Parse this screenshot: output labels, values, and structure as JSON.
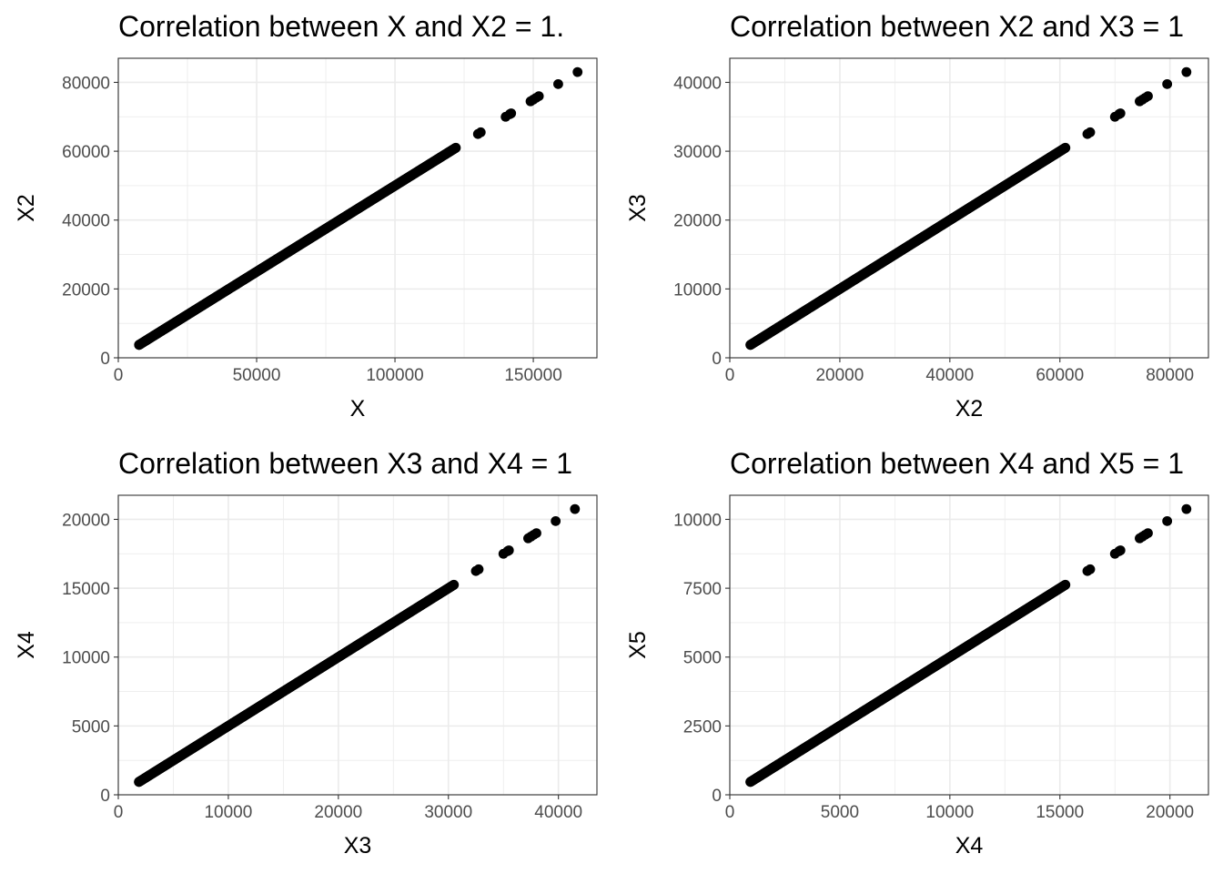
{
  "chart_data": [
    {
      "type": "scatter",
      "title": "Correlation between X and X2 = 1.",
      "xlabel": "X",
      "ylabel": "X2",
      "xlim": [
        0,
        173000
      ],
      "ylim": [
        0,
        87000
      ],
      "xticks": [
        0,
        50000,
        100000,
        150000
      ],
      "yticks": [
        0,
        20000,
        40000,
        60000,
        80000
      ],
      "xtick_labels": [
        "0",
        "50000",
        "100000",
        "150000"
      ],
      "ytick_labels": [
        "0",
        "20000",
        "40000",
        "60000",
        "80000"
      ],
      "grid": true,
      "x_dense_range": [
        7500,
        122000
      ],
      "slope": 0.5,
      "x_sparse": [
        7500,
        11000,
        13000,
        15500,
        16500,
        17500,
        18500,
        120000,
        121000,
        122000,
        130000,
        131000,
        140000,
        141500,
        142000,
        149000,
        150000,
        151000,
        152000,
        159000,
        166000
      ]
    },
    {
      "type": "scatter",
      "title": "Correlation between X2 and X3 = 1",
      "xlabel": "X2",
      "ylabel": "X3",
      "xlim": [
        0,
        87000
      ],
      "ylim": [
        0,
        43500
      ],
      "xticks": [
        0,
        20000,
        40000,
        60000,
        80000
      ],
      "yticks": [
        0,
        10000,
        20000,
        30000,
        40000
      ],
      "xtick_labels": [
        "0",
        "20000",
        "40000",
        "60000",
        "80000"
      ],
      "ytick_labels": [
        "0",
        "10000",
        "20000",
        "30000",
        "40000"
      ],
      "grid": true,
      "x_dense_range": [
        3750,
        61000
      ],
      "slope": 0.5,
      "x_sparse": [
        3750,
        5500,
        6500,
        7750,
        8250,
        8750,
        9250,
        60000,
        60500,
        61000,
        65000,
        65500,
        70000,
        70750,
        71000,
        74500,
        75000,
        75500,
        76000,
        79500,
        83000
      ]
    },
    {
      "type": "scatter",
      "title": "Correlation between X3 and X4 = 1",
      "xlabel": "X3",
      "ylabel": "X4",
      "xlim": [
        0,
        43500
      ],
      "ylim": [
        0,
        21750
      ],
      "xticks": [
        0,
        10000,
        20000,
        30000,
        40000
      ],
      "yticks": [
        0,
        5000,
        10000,
        15000,
        20000
      ],
      "xtick_labels": [
        "0",
        "10000",
        "20000",
        "30000",
        "40000"
      ],
      "ytick_labels": [
        "0",
        "5000",
        "10000",
        "15000",
        "20000"
      ],
      "grid": true,
      "x_dense_range": [
        1875,
        30500
      ],
      "slope": 0.5,
      "x_sparse": [
        1875,
        2750,
        3250,
        3875,
        4125,
        4375,
        4625,
        30000,
        30250,
        30500,
        32500,
        32750,
        35000,
        35375,
        35500,
        37250,
        37500,
        37750,
        38000,
        39750,
        41500
      ]
    },
    {
      "type": "scatter",
      "title": "Correlation between X4 and X5 = 1",
      "xlabel": "X4",
      "ylabel": "X5",
      "xlim": [
        0,
        21750
      ],
      "ylim": [
        0,
        10875
      ],
      "xticks": [
        0,
        5000,
        10000,
        15000,
        20000
      ],
      "yticks": [
        0,
        2500,
        5000,
        7500,
        10000
      ],
      "xtick_labels": [
        "0",
        "5000",
        "10000",
        "15000",
        "20000"
      ],
      "ytick_labels": [
        "0",
        "2500",
        "5000",
        "7500",
        "10000"
      ],
      "grid": true,
      "x_dense_range": [
        937,
        15250
      ],
      "slope": 0.5,
      "x_sparse": [
        937,
        1375,
        1625,
        1937,
        2062,
        2187,
        2312,
        15000,
        15125,
        15250,
        16250,
        16375,
        17500,
        17687,
        17750,
        18625,
        18750,
        18875,
        19000,
        19875,
        20750
      ]
    }
  ]
}
